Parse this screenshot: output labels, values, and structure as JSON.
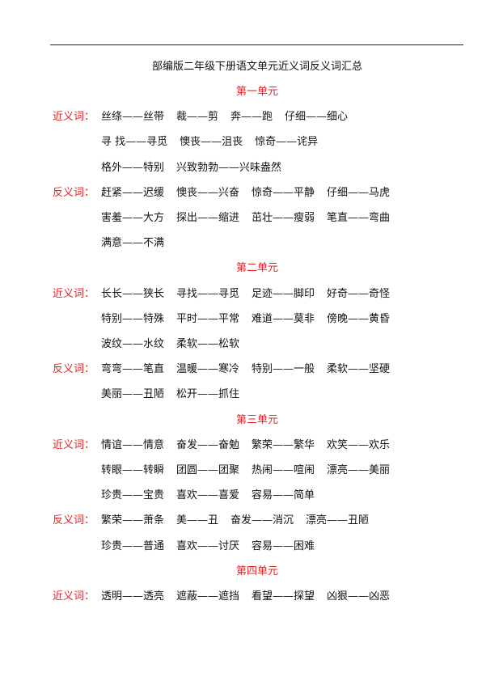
{
  "title": "部编版二年级下册语文单元近义词反义词汇总",
  "units": [
    {
      "heading": "第一单元",
      "groups": [
        {
          "label": "近义词：",
          "lines": [
            [
              "丝绦——丝带",
              "裁——剪",
              "奔——跑",
              "仔细——细心"
            ],
            [
              "寻 找——寻觅",
              "懊丧——沮丧",
              "惊奇——诧异"
            ],
            [
              "格外——特别",
              "兴致勃勃——兴味盎然"
            ]
          ]
        },
        {
          "label": "反义词：",
          "lines": [
            [
              "赶紧——迟缓",
              "懊丧——兴奋",
              "惊奇——平静",
              "仔细——马虎"
            ],
            [
              "害羞——大方",
              "探出——缩进",
              "茁壮——瘦弱",
              "笔直——弯曲"
            ],
            [
              "满意——不满"
            ]
          ]
        }
      ]
    },
    {
      "heading": "第二单元",
      "groups": [
        {
          "label": "近义词：",
          "lines": [
            [
              "长长——狭长",
              "寻找——寻觅",
              "足迹——脚印",
              "好奇——奇怪"
            ],
            [
              "特别——特殊",
              "平时——平常",
              "难道——莫非",
              "傍晚——黄昏"
            ],
            [
              "波纹——水纹",
              "柔软——松软"
            ]
          ]
        },
        {
          "label": "反义词：",
          "lines": [
            [
              "弯弯——笔直",
              "温暖——寒冷",
              "特别——一般",
              "柔软——坚硬"
            ],
            [
              "美丽——丑陋",
              "松开——抓住"
            ]
          ]
        }
      ]
    },
    {
      "heading": "第三单元",
      "groups": [
        {
          "label": "近义词：",
          "lines": [
            [
              "情谊——情意",
              "奋发——奋勉",
              "繁荣——繁华",
              "欢笑——欢乐"
            ],
            [
              "转眼——转瞬",
              "团圆——团聚",
              "热闹——喧闹",
              "漂亮——美丽"
            ],
            [
              "珍贵——宝贵",
              "喜欢——喜爱",
              "容易——简单"
            ]
          ]
        },
        {
          "label": "反义词：",
          "lines": [
            [
              "繁荣——萧条",
              "美——丑",
              "奋发——消沉",
              "漂亮——丑陋"
            ],
            [
              "珍贵——普通",
              "喜欢——讨厌",
              "容易——困难"
            ]
          ]
        }
      ]
    },
    {
      "heading": "第四单元",
      "groups": [
        {
          "label": "近义词：",
          "lines": [
            [
              "透明——透亮",
              "遮蔽——遮挡",
              "看望——探望",
              "凶狠——凶恶"
            ]
          ]
        }
      ]
    }
  ]
}
